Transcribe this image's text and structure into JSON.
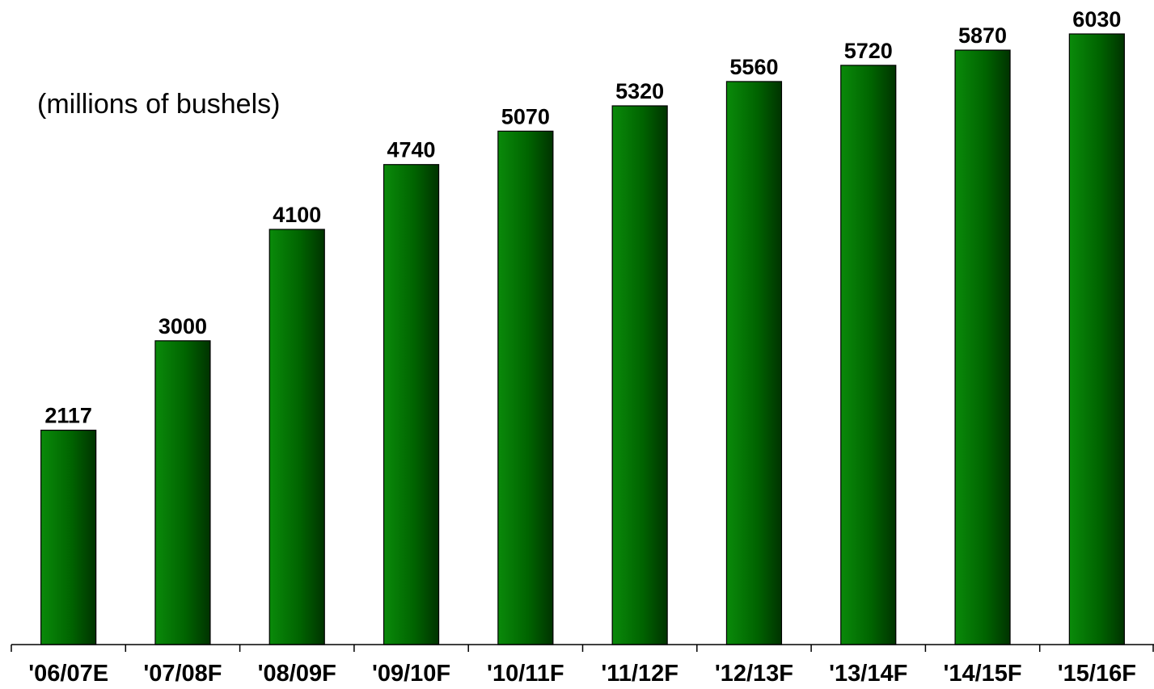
{
  "chart_data": {
    "type": "bar",
    "categories": [
      "'06/07E",
      "'07/08F",
      "'08/09F",
      "'09/10F",
      "'10/11F",
      "'11/12F",
      "'12/13F",
      "'13/14F",
      "'14/15F",
      "'15/16F"
    ],
    "values": [
      2117,
      3000,
      4100,
      4740,
      5070,
      5320,
      5560,
      5720,
      5870,
      6030
    ],
    "data_labels": [
      "2117",
      "3000",
      "4100",
      "4740",
      "5070",
      "5320",
      "5560",
      "5720",
      "5870",
      "6030"
    ],
    "units_label": "(millions of bushels)",
    "ylim": [
      0,
      6030
    ],
    "grid": false,
    "legend": "none",
    "bar_color": "#006400",
    "bar_color_light": "#0a8a0a",
    "bar_color_dark": "#003300"
  }
}
